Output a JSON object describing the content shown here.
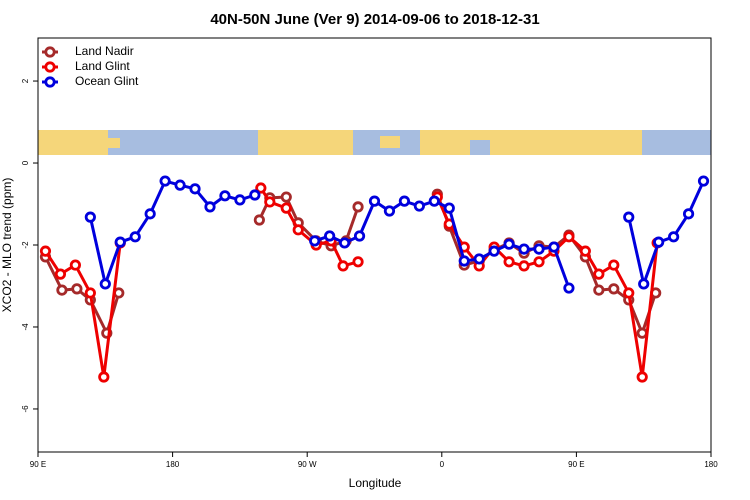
{
  "chart_data": {
    "type": "line",
    "title": "40N-50N June (Ver 9)   2014-09-06 to 2018-12-31",
    "xlabel": "Longitude",
    "ylabel": "XCO2 - MLO trend (ppm)",
    "xlim": [
      90,
      540
    ],
    "xticks": [
      {
        "value": 90,
        "label": "90 E"
      },
      {
        "value": 180,
        "label": "180"
      },
      {
        "value": 270,
        "label": "90 W"
      },
      {
        "value": 360,
        "label": "0"
      },
      {
        "value": 450,
        "label": "90 E"
      },
      {
        "value": 540,
        "label": "180"
      }
    ],
    "ylim": [
      -7.05,
      3.05
    ],
    "yticks": [
      -6,
      -4,
      -2,
      0,
      2
    ],
    "legend": "top-left",
    "series": [
      {
        "name": "Land Nadir",
        "color": "#a52a2a",
        "x": [
          95,
          106,
          116,
          125,
          136,
          144,
          190,
          238,
          245,
          256,
          264,
          276,
          286,
          296,
          304,
          330,
          357,
          365,
          375,
          385,
          395,
          405,
          415,
          425,
          435,
          445,
          456,
          465,
          475,
          485,
          494,
          503
        ],
        "values": [
          -2.29,
          -3.1,
          -3.07,
          -3.34,
          -4.15,
          -3.17,
          null,
          -1.39,
          -0.85,
          -0.83,
          -1.46,
          -1.9,
          -2.02,
          -1.9,
          -1.07,
          null,
          -0.76,
          -1.54,
          -2.49,
          -2.39,
          -2.12,
          -1.95,
          -2.2,
          -2.02,
          -2.05,
          -1.76,
          -2.29,
          -3.1,
          -3.07,
          -3.34,
          -4.15,
          -3.17
        ]
      },
      {
        "name": "Land Glint",
        "color": "#ee0000",
        "x": [
          95,
          105,
          115,
          125,
          134,
          145,
          190,
          239,
          245,
          256,
          264,
          276,
          286,
          294,
          304,
          330,
          357,
          365,
          375,
          385,
          395,
          405,
          415,
          425,
          435,
          445,
          456,
          465,
          475,
          485,
          494,
          504
        ],
        "values": [
          -2.15,
          -2.71,
          -2.49,
          -3.17,
          -5.22,
          -1.95,
          null,
          -0.61,
          -0.95,
          -1.1,
          -1.63,
          -2.0,
          -1.9,
          -2.51,
          -2.41,
          null,
          -0.83,
          -1.49,
          -2.05,
          -2.51,
          -2.05,
          -2.41,
          -2.51,
          -2.41,
          -2.15,
          -1.8,
          -2.15,
          -2.71,
          -2.49,
          -3.17,
          -5.22,
          -1.95
        ]
      },
      {
        "name": "Ocean Glint",
        "color": "#0000dd",
        "x": [
          125,
          135,
          145,
          155,
          165,
          175,
          185,
          195,
          205,
          215,
          225,
          235,
          255,
          275,
          285,
          295,
          305,
          315,
          325,
          335,
          345,
          355,
          365,
          375,
          385,
          395,
          405,
          415,
          425,
          435,
          445,
          465,
          485,
          495,
          505,
          515,
          525,
          535
        ],
        "values": [
          -1.32,
          -2.95,
          -1.93,
          -1.8,
          -1.24,
          -0.44,
          -0.54,
          -0.63,
          -1.07,
          -0.8,
          -0.9,
          -0.78,
          null,
          -1.9,
          -1.78,
          -1.95,
          -1.78,
          -0.93,
          -1.17,
          -0.93,
          -1.05,
          -0.93,
          -1.1,
          -2.39,
          -2.34,
          -2.15,
          -1.98,
          -2.1,
          -2.1,
          -2.05,
          -3.05,
          null,
          -1.32,
          -2.95,
          -1.93,
          -1.8,
          -1.24,
          -0.44
        ]
      }
    ]
  }
}
